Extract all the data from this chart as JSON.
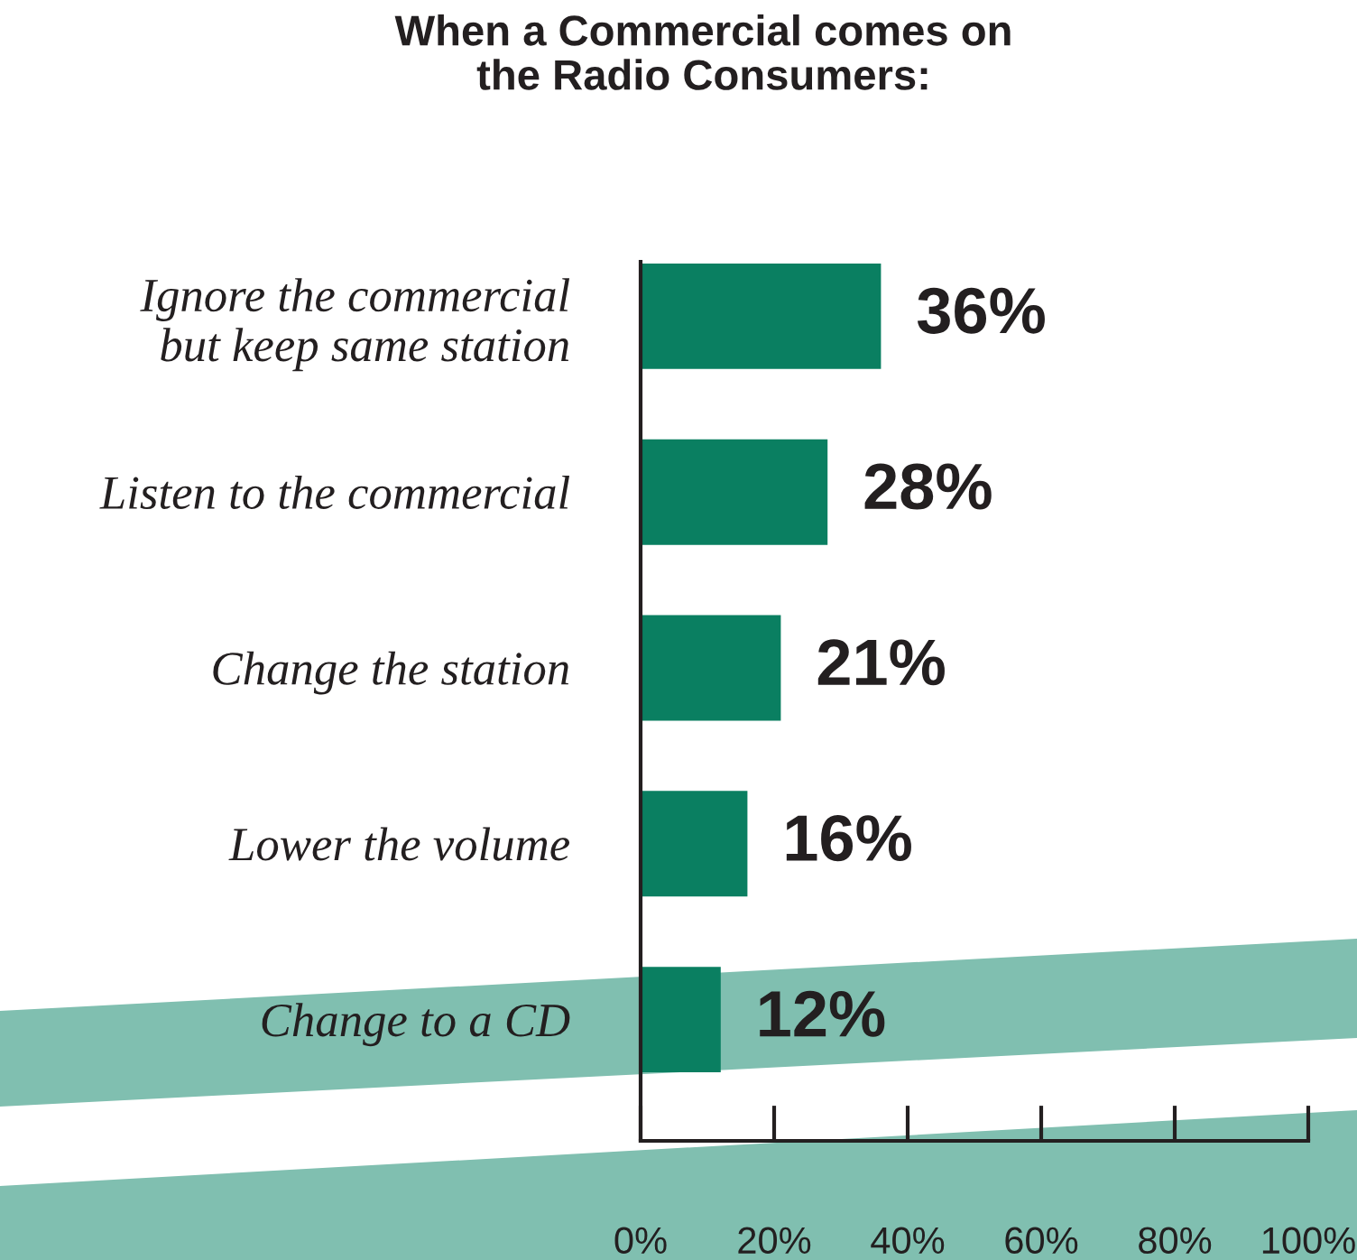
{
  "chart_data": {
    "type": "bar",
    "orientation": "horizontal",
    "title": "When a Commercial comes on\nthe Radio Consumers:",
    "categories": [
      "Ignore the commercial\nbut keep same station",
      "Listen to the commercial",
      "Change the station",
      "Lower the volume",
      "Change to a CD"
    ],
    "values": [
      36,
      28,
      21,
      16,
      12
    ],
    "color": "#0a7f61",
    "value_labels": [
      "36%",
      "28%",
      "21%",
      "16%",
      "12%"
    ],
    "xlim": [
      0,
      100
    ],
    "xticks": [
      {
        "value": 0,
        "label": "0%"
      },
      {
        "value": 20,
        "label": "20%"
      },
      {
        "value": 40,
        "label": "40%"
      },
      {
        "value": 60,
        "label": "60%"
      },
      {
        "value": 80,
        "label": "80%"
      },
      {
        "value": 100,
        "label": "100%"
      }
    ],
    "grid": false,
    "legend": false
  }
}
